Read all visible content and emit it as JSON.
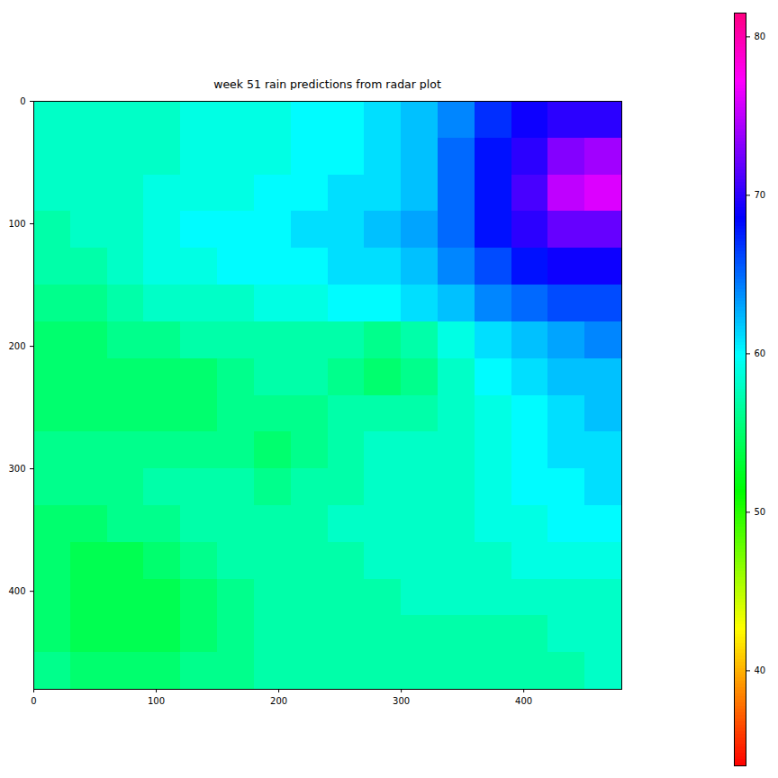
{
  "chart_data": {
    "type": "heatmap",
    "title": "week 51 rain predictions from radar plot",
    "xlim": [
      0,
      480
    ],
    "ylim": [
      480,
      0
    ],
    "xticks": [
      0,
      100,
      200,
      300,
      400
    ],
    "yticks": [
      0,
      100,
      200,
      300,
      400
    ],
    "x_edges": [
      0,
      30,
      60,
      90,
      120,
      150,
      180,
      210,
      240,
      270,
      300,
      330,
      360,
      390,
      420,
      450,
      480
    ],
    "y_edges": [
      0,
      30,
      60,
      90,
      120,
      150,
      180,
      210,
      240,
      270,
      300,
      330,
      360,
      390,
      420,
      450,
      480
    ],
    "cells": [
      [
        58,
        58,
        58,
        58,
        59,
        59,
        59,
        60,
        60,
        61,
        62,
        64,
        67,
        69,
        70,
        70
      ],
      [
        58,
        58,
        58,
        58,
        59,
        59,
        59,
        60,
        60,
        61,
        62,
        65,
        68,
        70,
        73,
        74
      ],
      [
        58,
        58,
        58,
        59,
        59,
        59,
        60,
        60,
        61,
        61,
        62,
        65,
        68,
        71,
        75,
        76
      ],
      [
        57,
        58,
        58,
        59,
        60,
        60,
        60,
        61,
        61,
        62,
        63,
        65,
        68,
        70,
        72,
        72
      ],
      [
        57,
        57,
        58,
        59,
        59,
        60,
        60,
        60,
        61,
        61,
        62,
        64,
        66,
        68,
        69,
        69
      ],
      [
        56,
        56,
        57,
        58,
        58,
        58,
        59,
        59,
        60,
        60,
        61,
        62,
        64,
        65,
        66,
        66
      ],
      [
        55,
        55,
        56,
        56,
        57,
        57,
        57,
        57,
        57,
        56,
        57,
        59,
        61,
        62,
        63,
        64
      ],
      [
        55,
        55,
        55,
        55,
        55,
        56,
        57,
        57,
        56,
        55,
        56,
        58,
        60,
        61,
        62,
        62
      ],
      [
        55,
        55,
        55,
        55,
        55,
        56,
        56,
        56,
        57,
        57,
        57,
        58,
        59,
        60,
        61,
        62
      ],
      [
        56,
        56,
        56,
        56,
        56,
        56,
        55,
        56,
        57,
        58,
        58,
        58,
        59,
        60,
        61,
        61
      ],
      [
        56,
        56,
        56,
        57,
        57,
        57,
        56,
        57,
        57,
        58,
        58,
        58,
        59,
        60,
        60,
        61
      ],
      [
        55,
        55,
        56,
        56,
        57,
        57,
        57,
        57,
        58,
        58,
        58,
        58,
        59,
        59,
        60,
        60
      ],
      [
        55,
        54,
        54,
        55,
        56,
        57,
        57,
        57,
        57,
        58,
        58,
        58,
        58,
        59,
        59,
        59
      ],
      [
        55,
        54,
        54,
        54,
        55,
        56,
        57,
        57,
        57,
        57,
        58,
        58,
        58,
        58,
        58,
        58
      ],
      [
        55,
        54,
        54,
        54,
        55,
        56,
        57,
        57,
        57,
        57,
        57,
        57,
        57,
        57,
        58,
        58
      ],
      [
        56,
        55,
        55,
        55,
        56,
        56,
        57,
        57,
        57,
        57,
        57,
        57,
        57,
        57,
        57,
        58
      ]
    ],
    "color_range": [
      34,
      81.5
    ],
    "color_ticks": [
      40,
      50,
      60,
      70,
      80
    ]
  }
}
